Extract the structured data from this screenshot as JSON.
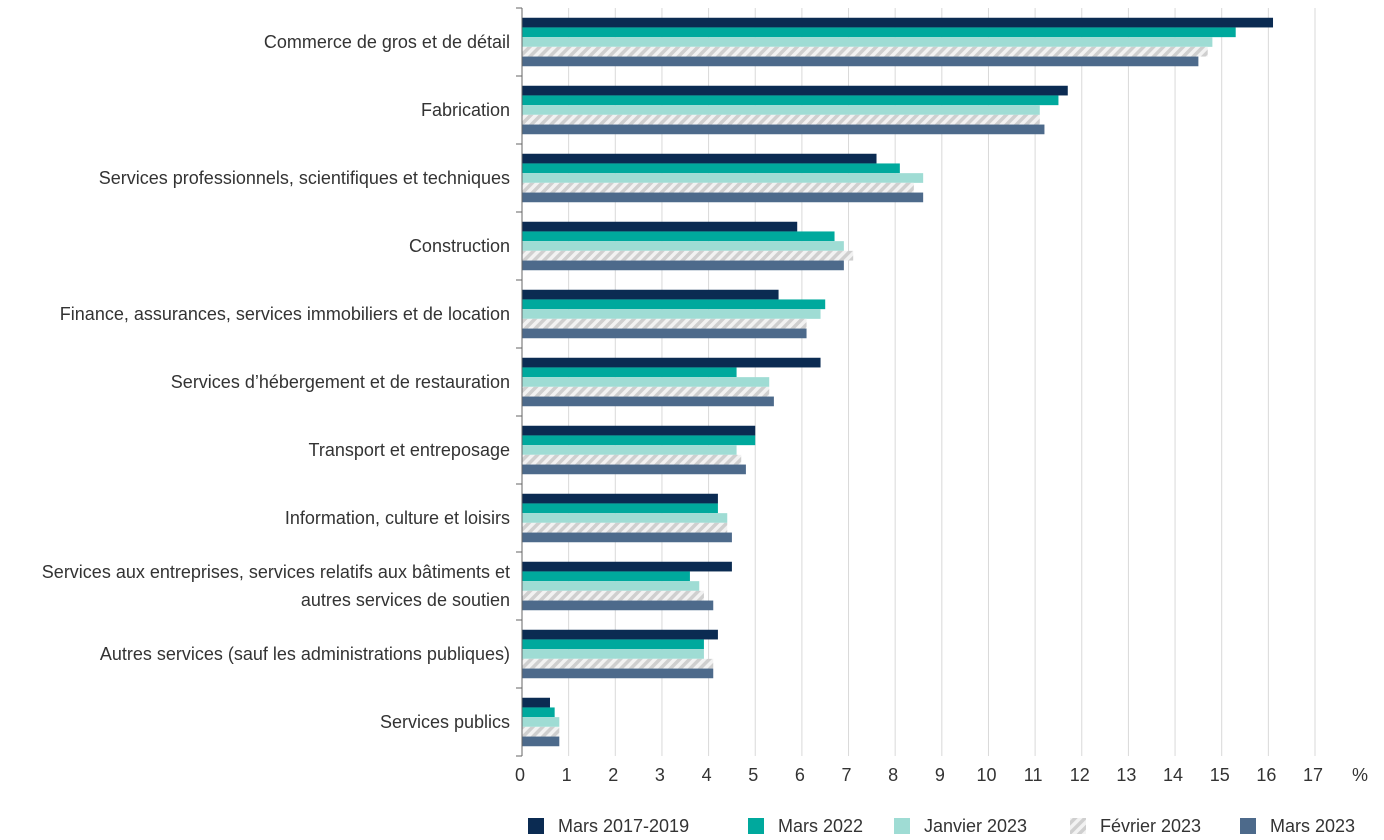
{
  "chart_data": {
    "type": "hbar",
    "x_label": "%",
    "categories": [
      "Commerce de gros et de détail",
      "Fabrication",
      "Services professionnels, scientifiques et techniques",
      "Construction",
      "Finance, assurances, services immobiliers et de location",
      "Services d’hébergement et de restauration",
      "Transport et entreposage",
      "Information, culture et loisirs",
      "Services aux entreprises, services relatifs aux bâtiments et autres services de soutien",
      "Autres services (sauf les administrations publiques)",
      "Services publics"
    ],
    "series": [
      {
        "name": "Mars 2017-2019",
        "color": "#0b2b52",
        "values": [
          16.1,
          11.7,
          7.6,
          5.9,
          5.5,
          6.4,
          5.0,
          4.2,
          4.5,
          4.2,
          0.6
        ]
      },
      {
        "name": "Mars 2022",
        "color": "#00a99d",
        "values": [
          15.3,
          11.5,
          8.1,
          6.7,
          6.5,
          4.6,
          5.0,
          4.2,
          3.6,
          3.9,
          0.7
        ]
      },
      {
        "name": "Janvier 2023",
        "color": "#9fdcd4",
        "values": [
          14.8,
          11.1,
          8.6,
          6.9,
          6.4,
          5.3,
          4.6,
          4.4,
          3.8,
          3.9,
          0.8
        ]
      },
      {
        "name": "Février 2023",
        "color": "hatch",
        "values": [
          14.7,
          11.1,
          8.4,
          7.1,
          6.1,
          5.3,
          4.7,
          4.4,
          3.9,
          4.1,
          0.8
        ]
      },
      {
        "name": "Mars 2023",
        "color": "#4d6a8b",
        "values": [
          14.5,
          11.2,
          8.6,
          6.9,
          6.1,
          5.4,
          4.8,
          4.5,
          4.1,
          4.1,
          0.8
        ]
      }
    ],
    "xlim": [
      0,
      17
    ],
    "xticks": [
      0,
      1,
      2,
      3,
      4,
      5,
      6,
      7,
      8,
      9,
      10,
      11,
      12,
      13,
      14,
      15,
      16,
      17
    ],
    "grid": true,
    "legend": "bottom"
  }
}
